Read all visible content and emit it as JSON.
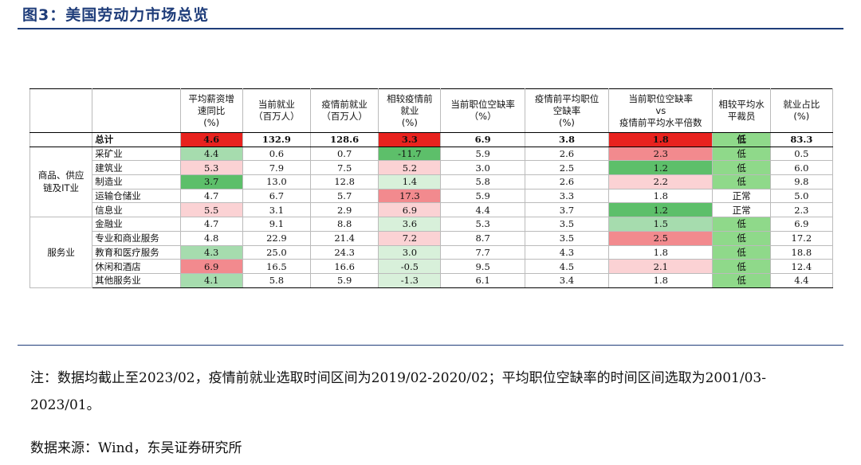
{
  "figure_title": "图3：美国劳动力市场总览",
  "colors": {
    "title": "#1f3d7a",
    "strong_red": "#e8221e",
    "mid_red": "#f28a8e",
    "light_red": "#fbd2d4",
    "strong_green": "#5dbf6a",
    "mid_green": "#a6dcae",
    "light_green": "#d8f0da",
    "layoff_green": "#8fd98a"
  },
  "table": {
    "headers": {
      "industry_group": "",
      "industry": "",
      "wage": [
        "平均薪资增",
        "速同比",
        "(%)"
      ],
      "employment_now": [
        "当前就业",
        "（百万人）"
      ],
      "employment_pre": [
        "疫情前就业",
        "（百万人）"
      ],
      "vs_pre": [
        "相较疫情前",
        "就业",
        "(%)"
      ],
      "vacancy_now": [
        "当前职位空缺率",
        "（%）"
      ],
      "vacancy_pre": [
        "疫情前平均职位",
        "空缺率",
        "(%)"
      ],
      "ratio": [
        "当前职位空缺率",
        "vs",
        "疫情前平均水平倍数"
      ],
      "layoff": [
        "相较平均水",
        "平裁员"
      ],
      "share": [
        "就业占比",
        "(%)"
      ]
    },
    "groups": {
      "goods": [
        "商品、供应",
        "链及IT业"
      ],
      "services": "服务业"
    },
    "rows": [
      {
        "name": "总计",
        "wage": "4.6",
        "emp": "132.9",
        "pre": "128.6",
        "vs": "3.3",
        "vac": "6.9",
        "vacpre": "3.8",
        "ratio": "1.8",
        "layoff": "低",
        "share": "83.3"
      },
      {
        "name": "采矿业",
        "wage": "4.4",
        "emp": "0.6",
        "pre": "0.7",
        "vs": "-11.7",
        "vac": "5.9",
        "vacpre": "2.6",
        "ratio": "2.3",
        "layoff": "低",
        "share": "0.5"
      },
      {
        "name": "建筑业",
        "wage": "5.3",
        "emp": "7.9",
        "pre": "7.5",
        "vs": "5.2",
        "vac": "3.0",
        "vacpre": "2.5",
        "ratio": "1.2",
        "layoff": "低",
        "share": "6.0"
      },
      {
        "name": "制造业",
        "wage": "3.7",
        "emp": "13.0",
        "pre": "12.8",
        "vs": "1.4",
        "vac": "5.8",
        "vacpre": "2.6",
        "ratio": "2.2",
        "layoff": "低",
        "share": "9.8"
      },
      {
        "name": "运输仓储业",
        "wage": "4.7",
        "emp": "6.7",
        "pre": "5.7",
        "vs": "17.3",
        "vac": "5.9",
        "vacpre": "3.3",
        "ratio": "1.8",
        "layoff": "正常",
        "share": "5.0"
      },
      {
        "name": "信息业",
        "wage": "5.5",
        "emp": "3.1",
        "pre": "2.9",
        "vs": "6.9",
        "vac": "4.4",
        "vacpre": "3.7",
        "ratio": "1.2",
        "layoff": "正常",
        "share": "2.3"
      },
      {
        "name": "金融业",
        "wage": "4.7",
        "emp": "9.1",
        "pre": "8.8",
        "vs": "3.6",
        "vac": "5.3",
        "vacpre": "3.5",
        "ratio": "1.5",
        "layoff": "低",
        "share": "6.9"
      },
      {
        "name": "专业和商业服务",
        "wage": "4.8",
        "emp": "22.9",
        "pre": "21.4",
        "vs": "7.2",
        "vac": "8.7",
        "vacpre": "3.5",
        "ratio": "2.5",
        "layoff": "低",
        "share": "17.2"
      },
      {
        "name": "教育和医疗服务",
        "wage": "4.3",
        "emp": "25.0",
        "pre": "24.3",
        "vs": "3.0",
        "vac": "7.7",
        "vacpre": "4.3",
        "ratio": "1.8",
        "layoff": "低",
        "share": "18.8"
      },
      {
        "name": "休闲和酒店",
        "wage": "6.9",
        "emp": "16.5",
        "pre": "16.6",
        "vs": "-0.5",
        "vac": "9.5",
        "vacpre": "4.5",
        "ratio": "2.1",
        "layoff": "低",
        "share": "12.4"
      },
      {
        "name": "其他服务业",
        "wage": "4.1",
        "emp": "5.8",
        "pre": "5.9",
        "vs": "-1.3",
        "vac": "6.1",
        "vacpre": "3.4",
        "ratio": "1.8",
        "layoff": "低",
        "share": "4.4"
      }
    ]
  },
  "note": "注：数据均截止至2023/02，疫情前就业选取时间区间为2019/02-2020/02；平均职位空缺率的时间区间选取为2001/03-2023/01。",
  "source": "数据来源：Wind，东吴证券研究所"
}
